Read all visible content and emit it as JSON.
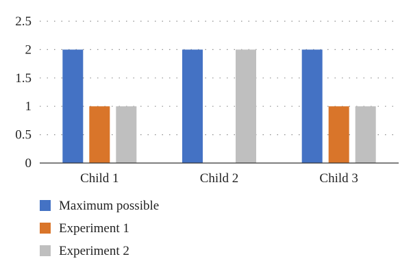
{
  "chart_data": {
    "type": "bar",
    "categories": [
      "Child 1",
      "Child 2",
      "Child 3"
    ],
    "series": [
      {
        "name": "Maximum possible",
        "values": [
          2,
          2,
          2
        ],
        "color": "#4472C4"
      },
      {
        "name": "Experiment 1",
        "values": [
          1,
          0,
          1
        ],
        "color": "#D9752A"
      },
      {
        "name": "Experiment 2",
        "values": [
          1,
          2,
          1
        ],
        "color": "#BFBFBF"
      }
    ],
    "title": "",
    "xlabel": "",
    "ylabel": "",
    "ylim": [
      0,
      2.5
    ],
    "yticks": [
      "0",
      "0.5",
      "1",
      "1.5",
      "2",
      "2.5"
    ],
    "grid": "dotted horizontal",
    "legend_position": "bottom-left, vertical"
  }
}
